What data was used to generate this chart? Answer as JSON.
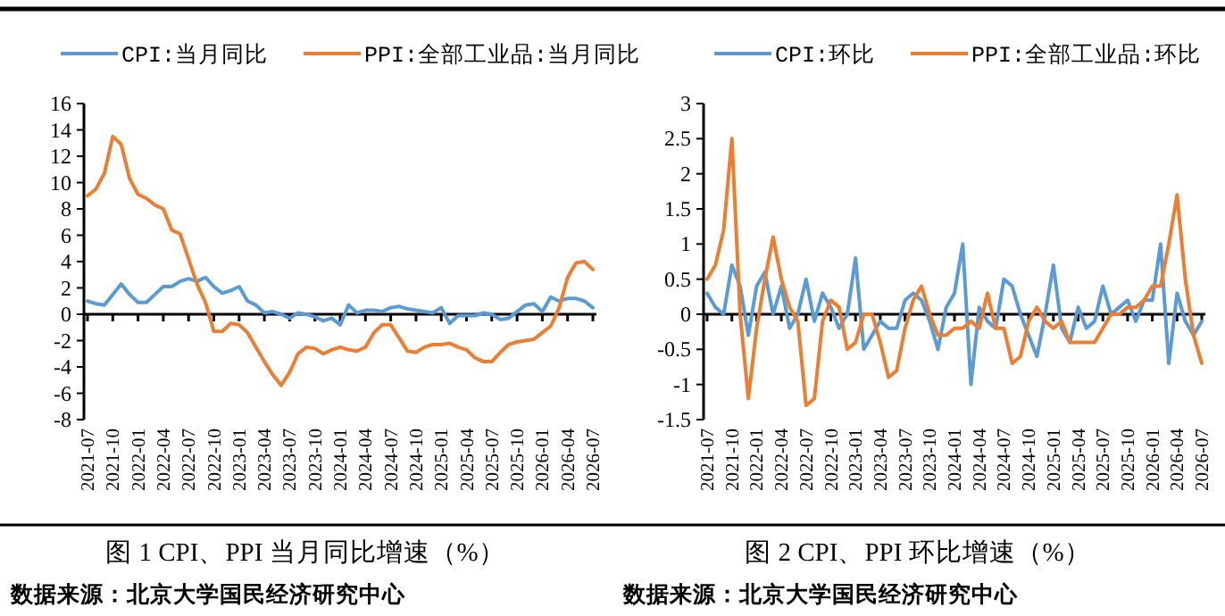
{
  "chart_data": [
    {
      "type": "line",
      "title": "图 1 CPI、PPI 当月同比增速（%）",
      "annotations": [
        "数据来源：北京大学国民经济研究中心"
      ],
      "legend": "top",
      "marker": "none",
      "line_style": "solid",
      "ylim": [
        -8,
        16
      ],
      "yticks": [
        -8,
        -6,
        -4,
        -2,
        0,
        2,
        4,
        6,
        8,
        10,
        12,
        14,
        16
      ],
      "categories": [
        "2021-07",
        null,
        null,
        "2021-10",
        null,
        null,
        "2022-01",
        null,
        null,
        "2022-04",
        null,
        null,
        "2022-07",
        null,
        null,
        "2022-10",
        null,
        null,
        "2023-01",
        null,
        null,
        "2023-04",
        null,
        null,
        "2023-07",
        null,
        null,
        "2023-10",
        null,
        null,
        "2024-01",
        null,
        null,
        "2024-04",
        null,
        null,
        "2024-07",
        null,
        null,
        "2024-10",
        null,
        null,
        "2025-01",
        null,
        null,
        "2025-04",
        null,
        null,
        "2025-07",
        null,
        null,
        "2025-10",
        null,
        null,
        "2026-01",
        null,
        null,
        "2026-04",
        null,
        null,
        "2026-07"
      ],
      "series": [
        {
          "name": "CPI:当月同比",
          "color": "#5b9bd5",
          "values": [
            1.0,
            0.8,
            0.7,
            1.5,
            2.3,
            1.5,
            0.9,
            0.9,
            1.5,
            2.1,
            2.1,
            2.5,
            2.7,
            2.5,
            2.8,
            2.1,
            1.6,
            1.8,
            2.1,
            1.0,
            0.7,
            0.1,
            0.2,
            0.0,
            -0.3,
            0.1,
            0.0,
            -0.2,
            -0.5,
            -0.3,
            -0.8,
            0.7,
            0.1,
            0.3,
            0.3,
            0.2,
            0.5,
            0.6,
            0.4,
            0.3,
            0.2,
            0.1,
            0.5,
            -0.7,
            -0.1,
            -0.1,
            -0.1,
            0.1,
            0.0,
            -0.4,
            -0.3,
            0.2,
            0.7,
            0.8,
            0.2,
            1.3,
            1.0,
            1.2,
            1.2,
            1.0,
            0.5
          ]
        },
        {
          "name": "PPI:全部工业品:当月同比",
          "color": "#ed7d31",
          "values": [
            9.0,
            9.5,
            10.7,
            13.5,
            12.9,
            10.3,
            9.1,
            8.8,
            8.3,
            8.0,
            6.4,
            6.1,
            4.2,
            2.3,
            0.9,
            -1.3,
            -1.3,
            -0.7,
            -0.8,
            -1.4,
            -2.5,
            -3.6,
            -4.6,
            -5.4,
            -4.4,
            -3.0,
            -2.5,
            -2.6,
            -3.0,
            -2.7,
            -2.5,
            -2.7,
            -2.8,
            -2.5,
            -1.4,
            -0.8,
            -0.8,
            -1.8,
            -2.8,
            -2.9,
            -2.5,
            -2.3,
            -2.3,
            -2.2,
            -2.5,
            -2.7,
            -3.3,
            -3.6,
            -3.6,
            -2.9,
            -2.3,
            -2.1,
            -2.0,
            -1.9,
            -1.4,
            -0.9,
            0.5,
            2.8,
            3.9,
            4.0,
            3.4
          ]
        }
      ]
    },
    {
      "type": "line",
      "title": "图 2 CPI、PPI 环比增速（%）",
      "annotations": [
        "数据来源：北京大学国民经济研究中心"
      ],
      "legend": "top",
      "marker": "none",
      "line_style": "solid",
      "ylim": [
        -1.5,
        3
      ],
      "yticks": [
        -1.5,
        -1,
        -0.5,
        0,
        0.5,
        1,
        1.5,
        2,
        2.5,
        3
      ],
      "categories": [
        "2021-07",
        null,
        null,
        "2021-10",
        null,
        null,
        "2022-01",
        null,
        null,
        "2022-04",
        null,
        null,
        "2022-07",
        null,
        null,
        "2022-10",
        null,
        null,
        "2023-01",
        null,
        null,
        "2023-04",
        null,
        null,
        "2023-07",
        null,
        null,
        "2023-10",
        null,
        null,
        "2024-01",
        null,
        null,
        "2024-04",
        null,
        null,
        "2024-07",
        null,
        null,
        "2024-10",
        null,
        null,
        "2025-01",
        null,
        null,
        "2025-04",
        null,
        null,
        "2025-07",
        null,
        null,
        "2025-10",
        null,
        null,
        "2026-01",
        null,
        null,
        "2026-04",
        null,
        null,
        "2026-07"
      ],
      "series": [
        {
          "name": "CPI:环比",
          "color": "#5b9bd5",
          "values": [
            0.3,
            0.1,
            0.0,
            0.7,
            0.4,
            -0.3,
            0.4,
            0.6,
            0.0,
            0.4,
            -0.2,
            0.0,
            0.5,
            -0.1,
            0.3,
            0.1,
            -0.2,
            0.0,
            0.8,
            -0.5,
            -0.3,
            -0.1,
            -0.2,
            -0.2,
            0.2,
            0.3,
            0.2,
            -0.1,
            -0.5,
            0.1,
            0.3,
            1.0,
            -1.0,
            0.1,
            -0.1,
            -0.2,
            0.5,
            0.4,
            0.0,
            -0.3,
            -0.6,
            0.0,
            0.7,
            -0.2,
            -0.4,
            0.1,
            -0.2,
            -0.1,
            0.4,
            0.0,
            0.1,
            0.2,
            -0.1,
            0.2,
            0.2,
            1.0,
            -0.7,
            0.3,
            -0.1,
            -0.3,
            -0.1
          ]
        },
        {
          "name": "PPI:全部工业品:环比",
          "color": "#ed7d31",
          "values": [
            0.5,
            0.7,
            1.2,
            2.5,
            0.0,
            -1.2,
            -0.2,
            0.5,
            1.1,
            0.5,
            0.1,
            -0.1,
            -1.3,
            -1.2,
            -0.1,
            0.2,
            0.1,
            -0.5,
            -0.4,
            0.0,
            0.0,
            -0.4,
            -0.9,
            -0.8,
            -0.2,
            0.2,
            0.4,
            0.0,
            -0.3,
            -0.3,
            -0.2,
            -0.2,
            -0.1,
            -0.2,
            0.3,
            -0.2,
            -0.2,
            -0.7,
            -0.6,
            -0.1,
            0.1,
            -0.1,
            -0.2,
            -0.1,
            -0.4,
            -0.4,
            -0.4,
            -0.4,
            -0.2,
            0.0,
            0.0,
            0.1,
            0.1,
            0.2,
            0.4,
            0.4,
            1.0,
            1.7,
            0.5,
            -0.3,
            -0.7
          ]
        }
      ]
    }
  ]
}
